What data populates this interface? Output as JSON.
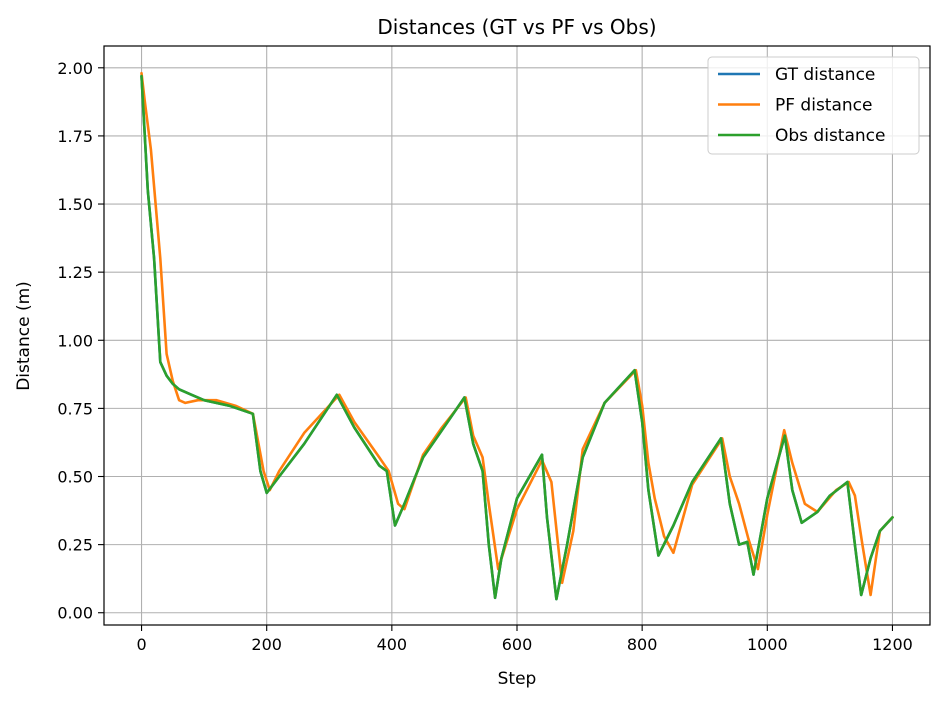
{
  "chart_data": {
    "type": "line",
    "title": "Distances (GT vs PF vs Obs)",
    "xlabel": "Step",
    "ylabel": "Distance (m)",
    "xlim": [
      -60,
      1260
    ],
    "ylim": [
      -0.045,
      2.08
    ],
    "xticks": [
      0,
      200,
      400,
      600,
      800,
      1000,
      1200
    ],
    "xtick_labels": [
      "0",
      "200",
      "400",
      "600",
      "800",
      "1000",
      "1200"
    ],
    "yticks": [
      0.0,
      0.25,
      0.5,
      0.75,
      1.0,
      1.25,
      1.5,
      1.75,
      2.0
    ],
    "ytick_labels": [
      "0.00",
      "0.25",
      "0.50",
      "0.75",
      "1.00",
      "1.25",
      "1.50",
      "1.75",
      "2.00"
    ],
    "grid": true,
    "legend_position": "top-right",
    "series": [
      {
        "name": "GT distance",
        "color": "#1f77b4",
        "x": [
          0,
          10,
          20,
          30,
          40,
          50,
          60,
          80,
          100,
          140,
          178,
          190,
          200,
          220,
          260,
          312,
          340,
          380,
          392,
          405,
          420,
          450,
          480,
          516,
          530,
          545,
          555,
          565,
          575,
          600,
          640,
          648,
          663,
          680,
          705,
          740,
          788,
          800,
          810,
          826,
          850,
          880,
          926,
          940,
          955,
          968,
          978,
          1000,
          1028,
          1040,
          1055,
          1080,
          1100,
          1128,
          1140,
          1150,
          1165,
          1180,
          1200
        ],
        "values": [
          1.97,
          1.55,
          1.3,
          0.92,
          0.87,
          0.84,
          0.82,
          0.8,
          0.78,
          0.76,
          0.73,
          0.52,
          0.44,
          0.5,
          0.62,
          0.8,
          0.68,
          0.54,
          0.52,
          0.32,
          0.4,
          0.57,
          0.67,
          0.79,
          0.62,
          0.52,
          0.25,
          0.055,
          0.2,
          0.42,
          0.58,
          0.35,
          0.05,
          0.25,
          0.57,
          0.77,
          0.89,
          0.7,
          0.45,
          0.21,
          0.32,
          0.48,
          0.64,
          0.4,
          0.25,
          0.26,
          0.14,
          0.42,
          0.65,
          0.45,
          0.33,
          0.37,
          0.43,
          0.48,
          0.25,
          0.065,
          0.2,
          0.3,
          0.35
        ]
      },
      {
        "name": "PF distance",
        "color": "#ff7f0e",
        "x": [
          0,
          5,
          15,
          30,
          40,
          50,
          60,
          70,
          90,
          120,
          150,
          178,
          195,
          205,
          220,
          260,
          316,
          340,
          380,
          395,
          410,
          420,
          450,
          480,
          518,
          530,
          545,
          555,
          570,
          600,
          640,
          655,
          672,
          690,
          705,
          740,
          790,
          800,
          810,
          820,
          835,
          850,
          880,
          928,
          940,
          955,
          970,
          985,
          1000,
          1027,
          1040,
          1060,
          1080,
          1110,
          1130,
          1140,
          1152,
          1165,
          1180,
          1200
        ],
        "values": [
          1.98,
          1.88,
          1.7,
          1.3,
          0.95,
          0.85,
          0.78,
          0.77,
          0.78,
          0.78,
          0.76,
          0.73,
          0.52,
          0.45,
          0.52,
          0.66,
          0.8,
          0.7,
          0.57,
          0.52,
          0.4,
          0.38,
          0.58,
          0.68,
          0.79,
          0.65,
          0.57,
          0.4,
          0.16,
          0.38,
          0.56,
          0.48,
          0.11,
          0.3,
          0.6,
          0.77,
          0.89,
          0.76,
          0.55,
          0.42,
          0.28,
          0.22,
          0.47,
          0.64,
          0.5,
          0.4,
          0.27,
          0.16,
          0.36,
          0.67,
          0.55,
          0.4,
          0.37,
          0.45,
          0.48,
          0.43,
          0.25,
          0.065,
          0.3,
          0.35
        ]
      },
      {
        "name": "Obs distance",
        "color": "#2ca02c",
        "x": [
          0,
          10,
          20,
          30,
          40,
          50,
          60,
          80,
          100,
          140,
          178,
          190,
          200,
          220,
          260,
          312,
          340,
          380,
          392,
          405,
          420,
          450,
          480,
          516,
          530,
          545,
          555,
          565,
          575,
          600,
          640,
          648,
          663,
          680,
          705,
          740,
          788,
          800,
          810,
          826,
          850,
          880,
          926,
          940,
          955,
          968,
          978,
          1000,
          1028,
          1040,
          1055,
          1080,
          1100,
          1128,
          1140,
          1150,
          1165,
          1180,
          1200
        ],
        "values": [
          1.97,
          1.55,
          1.3,
          0.92,
          0.87,
          0.84,
          0.82,
          0.8,
          0.78,
          0.76,
          0.73,
          0.52,
          0.44,
          0.5,
          0.62,
          0.8,
          0.68,
          0.54,
          0.52,
          0.32,
          0.4,
          0.57,
          0.67,
          0.79,
          0.62,
          0.52,
          0.25,
          0.055,
          0.2,
          0.42,
          0.58,
          0.35,
          0.05,
          0.25,
          0.57,
          0.77,
          0.89,
          0.7,
          0.45,
          0.21,
          0.32,
          0.48,
          0.64,
          0.4,
          0.25,
          0.26,
          0.14,
          0.42,
          0.65,
          0.45,
          0.33,
          0.37,
          0.43,
          0.48,
          0.25,
          0.065,
          0.2,
          0.3,
          0.35
        ]
      }
    ]
  }
}
